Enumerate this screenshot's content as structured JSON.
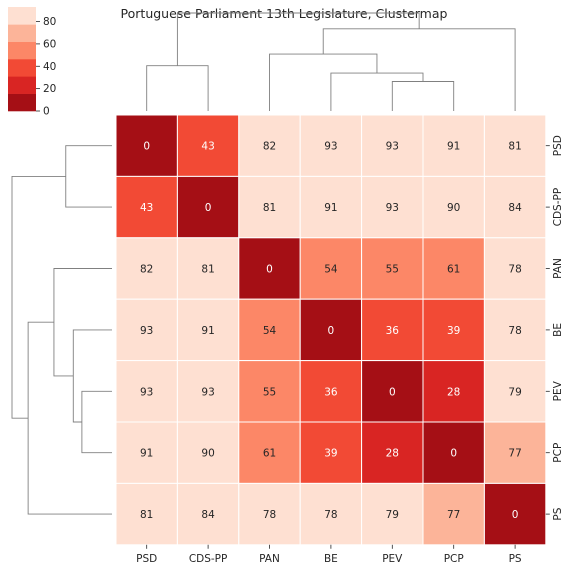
{
  "chart_data": {
    "type": "heatmap",
    "title": "Portuguese Parliament 13th Legislature, Clustermap",
    "rows": [
      "PSD",
      "CDS-PP",
      "PAN",
      "BE",
      "PEV",
      "PCP",
      "PS"
    ],
    "cols": [
      "PSD",
      "CDS-PP",
      "PAN",
      "BE",
      "PEV",
      "PCP",
      "PS"
    ],
    "values": [
      [
        0,
        43,
        82,
        93,
        93,
        91,
        81
      ],
      [
        43,
        0,
        81,
        91,
        93,
        90,
        84
      ],
      [
        82,
        81,
        0,
        54,
        55,
        61,
        78
      ],
      [
        93,
        91,
        54,
        0,
        36,
        39,
        78
      ],
      [
        93,
        93,
        55,
        36,
        0,
        28,
        79
      ],
      [
        91,
        90,
        61,
        39,
        28,
        0,
        77
      ],
      [
        81,
        84,
        78,
        78,
        79,
        77,
        0
      ]
    ],
    "colorbar": {
      "ticks": [
        "0",
        "20",
        "40",
        "60",
        "80"
      ],
      "tick_values": [
        0,
        20,
        40,
        60,
        80
      ],
      "range": [
        0,
        93
      ],
      "colors": [
        "#a50f15",
        "#d92523",
        "#f24a35",
        "#fc8767",
        "#fcb499",
        "#fee0d2"
      ]
    },
    "colormap": "Reds_r",
    "dendrogram": {
      "merges": [
        [
          "PEV",
          "PCP",
          28
        ],
        [
          "BE",
          "PEV+PCP",
          36
        ],
        [
          "PAN",
          "BE+PEV+PCP",
          54
        ],
        [
          "PAN+BE+PEV+PCP",
          "PS",
          78
        ],
        [
          "PSD",
          "CDS-PP",
          43
        ],
        [
          "PSD+CDS-PP",
          "PAN+BE+PEV+PCP+PS",
          93
        ]
      ]
    }
  }
}
